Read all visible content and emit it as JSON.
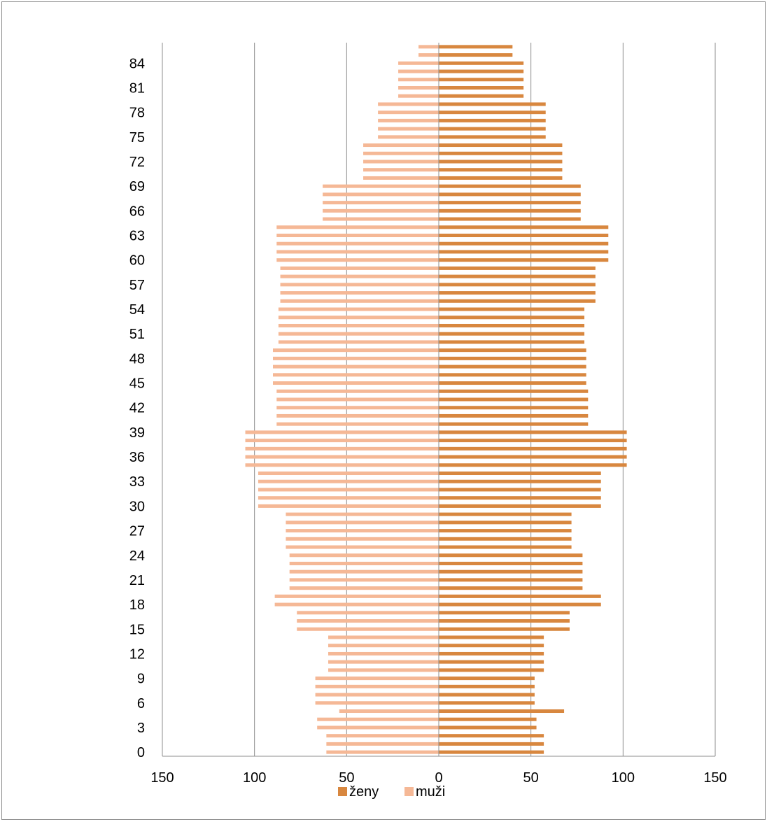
{
  "chart_data": {
    "type": "bar",
    "orientation": "horizontal",
    "subtype": "population-pyramid",
    "title": "",
    "xlabel": "",
    "ylabel": "",
    "xlim": [
      -150,
      150
    ],
    "x_tick_values": [
      -150,
      -100,
      -50,
      0,
      50,
      100,
      150
    ],
    "x_tick_labels": [
      "150",
      "100",
      "50",
      "0",
      "50",
      "100",
      "150"
    ],
    "categories": [
      "0",
      "1",
      "2",
      "3",
      "4",
      "5",
      "6",
      "7",
      "8",
      "9",
      "10",
      "11",
      "12",
      "13",
      "14",
      "15",
      "16",
      "17",
      "18",
      "19",
      "20",
      "21",
      "22",
      "23",
      "24",
      "25",
      "26",
      "27",
      "28",
      "29",
      "30",
      "31",
      "32",
      "33",
      "34",
      "35",
      "36",
      "37",
      "38",
      "39",
      "40",
      "41",
      "42",
      "43",
      "44",
      "45",
      "46",
      "47",
      "48",
      "49",
      "50",
      "51",
      "52",
      "53",
      "54",
      "55",
      "56",
      "57",
      "58",
      "59",
      "60",
      "61",
      "62",
      "63",
      "64",
      "65",
      "66",
      "67",
      "68",
      "69",
      "70",
      "71",
      "72",
      "73",
      "74",
      "75",
      "76",
      "77",
      "78",
      "79",
      "80",
      "81",
      "82",
      "83",
      "84",
      "85",
      "86"
    ],
    "y_tick_labels": [
      "0",
      "3",
      "6",
      "9",
      "12",
      "15",
      "18",
      "21",
      "24",
      "27",
      "30",
      "33",
      "36",
      "39",
      "42",
      "45",
      "48",
      "51",
      "54",
      "57",
      "60",
      "63",
      "66",
      "69",
      "72",
      "75",
      "78",
      "81",
      "84"
    ],
    "grid": "vertical",
    "legend_position": "bottom",
    "series": [
      {
        "name": "ženy",
        "side": "right",
        "color": "#d8873f",
        "values": [
          57,
          57,
          57,
          53,
          53,
          68,
          52,
          52,
          52,
          52,
          57,
          57,
          57,
          57,
          57,
          71,
          71,
          71,
          88,
          88,
          78,
          78,
          78,
          78,
          78,
          72,
          72,
          72,
          72,
          72,
          88,
          88,
          88,
          88,
          88,
          102,
          102,
          102,
          102,
          102,
          81,
          81,
          81,
          81,
          81,
          80,
          80,
          80,
          80,
          80,
          79,
          79,
          79,
          79,
          79,
          85,
          85,
          85,
          85,
          85,
          92,
          92,
          92,
          92,
          92,
          77,
          77,
          77,
          77,
          77,
          67,
          67,
          67,
          67,
          67,
          58,
          58,
          58,
          58,
          58,
          46,
          46,
          46,
          46,
          46,
          40,
          40
        ]
      },
      {
        "name": "muži",
        "side": "left",
        "color": "#f5b896",
        "values": [
          61,
          61,
          61,
          66,
          66,
          54,
          67,
          67,
          67,
          67,
          60,
          60,
          60,
          60,
          60,
          77,
          77,
          77,
          89,
          89,
          81,
          81,
          81,
          81,
          81,
          83,
          83,
          83,
          83,
          83,
          98,
          98,
          98,
          98,
          98,
          105,
          105,
          105,
          105,
          105,
          88,
          88,
          88,
          88,
          88,
          90,
          90,
          90,
          90,
          90,
          87,
          87,
          87,
          87,
          87,
          86,
          86,
          86,
          86,
          86,
          88,
          88,
          88,
          88,
          88,
          63,
          63,
          63,
          63,
          63,
          41,
          41,
          41,
          41,
          41,
          33,
          33,
          33,
          33,
          33,
          22,
          22,
          22,
          22,
          22,
          11,
          11
        ]
      }
    ]
  },
  "legend": {
    "female_label": "ženy",
    "male_label": "muži"
  },
  "colors": {
    "female": "#d8873f",
    "male": "#f5b896",
    "gridline": "#8c8c8c",
    "axis": "#8c8c8c",
    "border": "#8c8c8c"
  }
}
